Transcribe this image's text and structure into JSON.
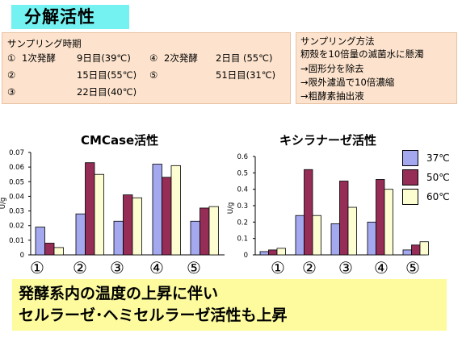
{
  "title": "分解活性",
  "sampling_times": {
    "heading": "サンプリング時期",
    "rows": [
      [
        "①",
        "1次発酵",
        "9日目(39℃)"
      ],
      [
        "④",
        "2次発酵",
        "2日目 (55℃)"
      ],
      [
        "②",
        "",
        "15日目(55℃)"
      ],
      [
        "⑤",
        "",
        "51日目(31℃)"
      ],
      [
        "③",
        "",
        "22日目(40℃)"
      ]
    ]
  },
  "sampling_method": {
    "heading": "サンプリング方法",
    "steps": [
      "籾殻を10倍量の滅菌水に懸濁",
      "→固形分を除去",
      "→限外濾過で10倍濃縮",
      "→粗酵素抽出液"
    ]
  },
  "x_markers": [
    "①",
    "②",
    "③",
    "④",
    "⑤"
  ],
  "colors": {
    "title_bg": "#74f2f2",
    "panel_bg": "#fde3cd",
    "series_37": "#a3a8ef",
    "series_50": "#962d57",
    "series_60": "#fdfdd2",
    "conclusion_bg": "#fdfb9e"
  },
  "chart_data": [
    {
      "type": "bar",
      "title": "CMCase活性",
      "ylabel": "U/g",
      "xlabel": "",
      "categories": [
        "①",
        "②",
        "③",
        "④",
        "⑤"
      ],
      "ylim": [
        0,
        0.07
      ],
      "yticks": [
        "0",
        "0.01",
        "0.02",
        "0.03",
        "0.04",
        "0.05",
        "0.06",
        "0.07"
      ],
      "series": [
        {
          "name": "37℃",
          "values": [
            0.019,
            0.028,
            0.023,
            0.062,
            0.023
          ]
        },
        {
          "name": "50℃",
          "values": [
            0.008,
            0.063,
            0.041,
            0.053,
            0.032
          ]
        },
        {
          "name": "60℃",
          "values": [
            0.005,
            0.055,
            0.039,
            0.061,
            0.033
          ]
        }
      ],
      "legend": "none",
      "grid": false
    },
    {
      "type": "bar",
      "title": "キシラナーゼ活性",
      "ylabel": "U/g",
      "xlabel": "",
      "categories": [
        "①",
        "②",
        "③",
        "④",
        "⑤"
      ],
      "ylim": [
        0,
        0.6
      ],
      "yticks": [
        "0",
        "0.1",
        "0.2",
        "0.3",
        "0.4",
        "0.5",
        "0.6"
      ],
      "series": [
        {
          "name": "37℃",
          "values": [
            0.02,
            0.24,
            0.19,
            0.2,
            0.03
          ]
        },
        {
          "name": "50℃",
          "values": [
            0.03,
            0.52,
            0.45,
            0.46,
            0.06
          ]
        },
        {
          "name": "60℃",
          "values": [
            0.04,
            0.24,
            0.29,
            0.4,
            0.08
          ]
        }
      ],
      "legend": "right",
      "grid": false
    }
  ],
  "conclusion": [
    "発酵系内の温度の上昇に伴い",
    "セルラーゼ･ヘミセルラーゼ活性も上昇"
  ]
}
